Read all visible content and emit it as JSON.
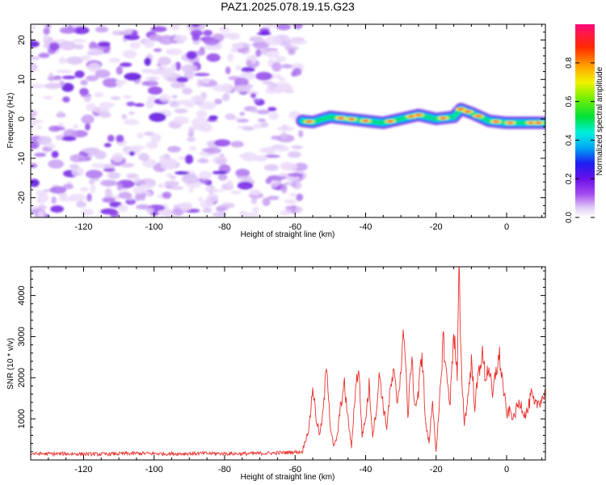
{
  "title": "PAZ1.2025.078.19.15.G23",
  "chart_data": [
    {
      "type": "heatmap",
      "title": "PAZ1.2025.078.19.15.G23",
      "xlabel": "Height of straight line (km)",
      "ylabel": "Frequency (Hz)",
      "xlim": [
        -135,
        11
      ],
      "ylim": [
        -25,
        24
      ],
      "x_ticks": [
        -120,
        -100,
        -80,
        -60,
        -40,
        -20,
        0
      ],
      "y_ticks": [
        -20,
        -10,
        0,
        10,
        20
      ],
      "noise_region_x": [
        -135,
        -58
      ],
      "signal_track": {
        "x": [
          -58,
          -55,
          -50,
          -45,
          -40,
          -35,
          -30,
          -25,
          -20,
          -15,
          -13,
          -10,
          -5,
          0,
          5,
          11
        ],
        "frequency": [
          -0.5,
          -0.8,
          0.5,
          0,
          -0.5,
          -1.0,
          0,
          1.0,
          0,
          0.5,
          2.5,
          1.5,
          -0.5,
          -1.0,
          -1.0,
          -1.0
        ]
      },
      "colorbar": {
        "label": "Normalized spectral amplitude",
        "range": [
          0.0,
          1.0
        ],
        "ticks": [
          0.0,
          0.2,
          0.4,
          0.6,
          0.8
        ],
        "tick_labels": [
          "0.0",
          "0.2",
          "0.4",
          "0.6",
          "0.8"
        ]
      },
      "grid": false
    },
    {
      "type": "line",
      "xlabel": "Height of straight line (km)",
      "ylabel": "SNR (10 * v/v)",
      "xlim": [
        -135,
        11
      ],
      "ylim": [
        0,
        4700
      ],
      "x_ticks": [
        -120,
        -100,
        -80,
        -60,
        -40,
        -20,
        0
      ],
      "y_ticks": [
        1000,
        2000,
        3000,
        4000
      ],
      "color": "#e8322e",
      "series": [
        {
          "x": [
            -135,
            -125,
            -115,
            -105,
            -95,
            -85,
            -75,
            -65,
            -58,
            -56,
            -55,
            -54,
            -53,
            -52,
            -51,
            -50,
            -49,
            -48,
            -47,
            -46,
            -45,
            -44,
            -43,
            -42,
            -41,
            -40,
            -39,
            -38,
            -37,
            -36,
            -35,
            -34,
            -33,
            -32,
            -31,
            -30,
            -29,
            -28,
            -27,
            -26,
            -25,
            -24,
            -23,
            -22,
            -21,
            -20,
            -19,
            -18,
            -17,
            -16,
            -15,
            -14,
            -13.5,
            -13,
            -12,
            -11,
            -10,
            -9,
            -8,
            -7,
            -6,
            -5,
            -4,
            -3,
            -2,
            -1,
            0,
            1,
            2,
            3,
            4,
            5,
            6,
            7,
            8,
            9,
            10,
            11
          ],
          "y": [
            150,
            150,
            140,
            160,
            150,
            160,
            150,
            170,
            200,
            800,
            1800,
            1000,
            600,
            1200,
            2400,
            800,
            300,
            600,
            1400,
            1800,
            1000,
            300,
            1600,
            2300,
            600,
            1000,
            1800,
            600,
            1200,
            2100,
            1300,
            800,
            1700,
            2100,
            1400,
            2200,
            3200,
            1000,
            2500,
            1300,
            1600,
            2700,
            900,
            400,
            1500,
            150,
            1400,
            3000,
            2000,
            1400,
            3200,
            2000,
            4700,
            2500,
            900,
            1500,
            2400,
            1300,
            2100,
            2600,
            2000,
            2300,
            1500,
            2200,
            2500,
            1800,
            1100,
            1200,
            1000,
            1300,
            1400,
            1100,
            1200,
            1600,
            1300,
            1400,
            1500,
            1600
          ]
        }
      ],
      "grid": false
    }
  ]
}
